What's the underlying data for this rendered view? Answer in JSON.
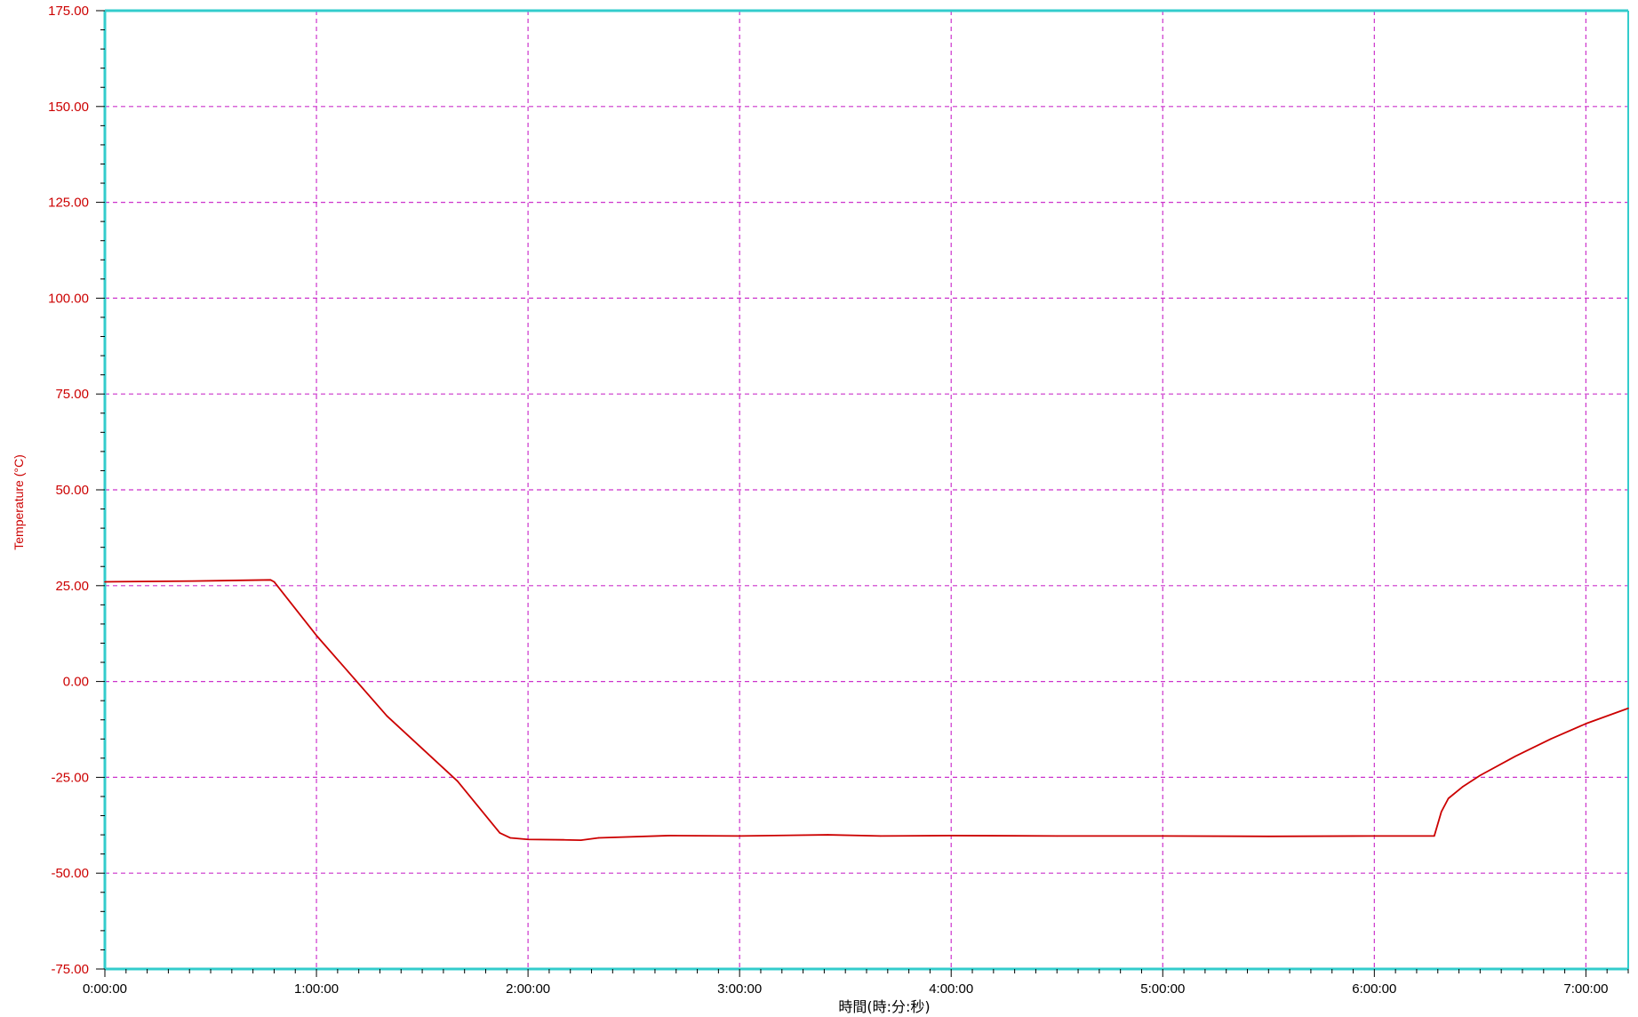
{
  "chart_data": {
    "type": "line",
    "title": "",
    "xlabel": "時間(時:分:秒)",
    "ylabel": "Temperature (°C)",
    "x_unit": "h:mm:ss",
    "xlim": [
      "0:00:00",
      "7:12:00"
    ],
    "ylim": [
      -75,
      175
    ],
    "x_ticks": [
      "0:00:00",
      "1:00:00",
      "2:00:00",
      "3:00:00",
      "4:00:00",
      "5:00:00",
      "6:00:00",
      "7:00:00"
    ],
    "y_ticks": [
      "175.00",
      "150.00",
      "125.00",
      "100.00",
      "75.00",
      "50.00",
      "25.00",
      "0.00",
      "-25.00",
      "-50.00",
      "-75.00"
    ],
    "grid": true,
    "legend": "none",
    "colors": {
      "series": "#cc0000",
      "grid": "#cc33cc",
      "frame": "#33cccc",
      "tick_label_y": "#cc0000",
      "tick_label_x": "#000000"
    },
    "series": [
      {
        "x": [
          "0:00:00",
          "0:25:00",
          "0:47:00",
          "0:48:00",
          "1:00:00",
          "1:20:00",
          "1:40:00",
          "1:52:00",
          "1:55:00",
          "2:00:00",
          "2:10:00",
          "2:15:00",
          "2:20:00",
          "2:40:00",
          "3:00:00",
          "3:25:00",
          "3:40:00",
          "4:00:00",
          "4:30:00",
          "5:00:00",
          "5:30:00",
          "6:00:00",
          "6:17:00",
          "6:19:00",
          "6:21:00",
          "6:25:00",
          "6:30:00",
          "6:40:00",
          "6:50:00",
          "7:00:00",
          "7:12:00"
        ],
        "y": [
          26.0,
          26.2,
          26.5,
          26.0,
          12.0,
          -9.0,
          -26.0,
          -39.5,
          -40.8,
          -41.2,
          -41.3,
          -41.4,
          -40.8,
          -40.2,
          -40.3,
          -40.0,
          -40.3,
          -40.2,
          -40.3,
          -40.3,
          -40.4,
          -40.3,
          -40.3,
          -34.0,
          -30.5,
          -27.5,
          -24.5,
          -19.5,
          -15.0,
          -11.0,
          -7.0
        ]
      }
    ]
  }
}
